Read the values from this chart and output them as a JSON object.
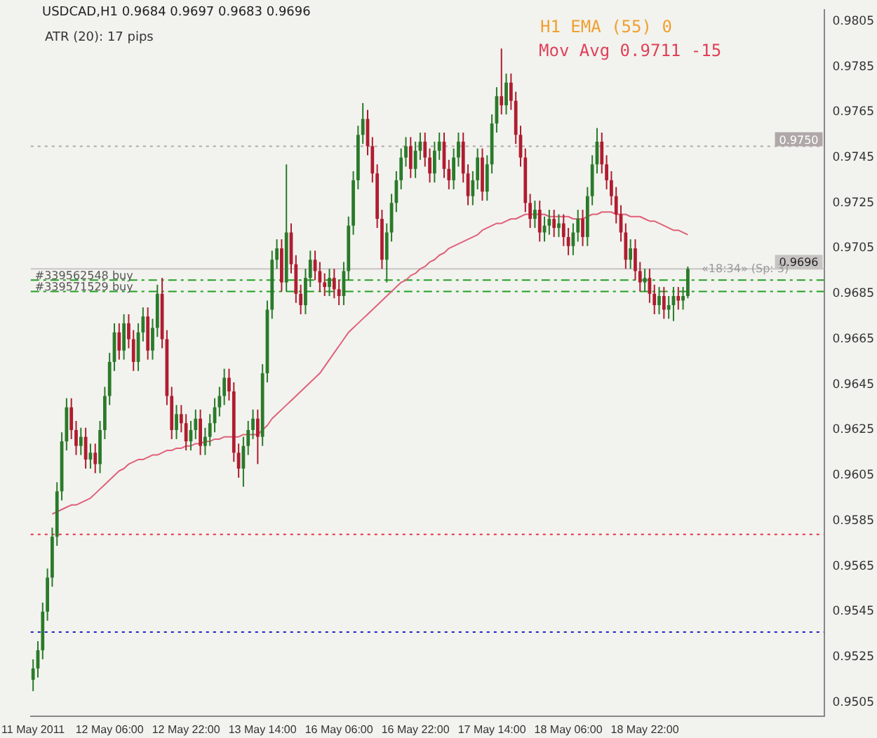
{
  "chart_data": {
    "type": "candlestick",
    "title": "USDCAD,H1  0.9684 0.9697 0.9683 0.9696",
    "annotations": [
      "ATR (20):   17 pips",
      "H1 EMA (55)  0",
      "Mov Avg    0.9711    -15",
      "«18:34» (Sp: 3)"
    ],
    "categories": [
      "11 May 2011",
      null,
      null,
      null,
      null,
      null,
      null,
      null,
      null,
      null,
      null,
      null,
      null,
      null,
      null,
      null,
      "12 May 06:00",
      null,
      null,
      null,
      null,
      null,
      null,
      null,
      null,
      null,
      null,
      null,
      null,
      null,
      null,
      null,
      "12 May 22:00",
      null,
      null,
      null,
      null,
      null,
      null,
      null,
      null,
      null,
      null,
      null,
      null,
      null,
      null,
      null,
      "13 May 14:00",
      null,
      null,
      null,
      null,
      null,
      null,
      null,
      null,
      null,
      null,
      null,
      null,
      null,
      null,
      null,
      "16 May 06:00",
      null,
      null,
      null,
      null,
      null,
      null,
      null,
      null,
      null,
      null,
      null,
      null,
      null,
      null,
      null,
      "16 May 22:00",
      null,
      null,
      null,
      null,
      null,
      null,
      null,
      null,
      null,
      null,
      null,
      null,
      null,
      null,
      null,
      "17 May 14:00",
      null,
      null,
      null,
      null,
      null,
      null,
      null,
      null,
      null,
      null,
      null,
      null,
      null,
      null,
      null,
      "18 May 06:00",
      null,
      null,
      null,
      null,
      null,
      null,
      null,
      null,
      null,
      null,
      null,
      null,
      null,
      null,
      null,
      "18 May 22:00",
      null,
      null,
      null,
      null,
      null,
      null,
      null,
      null,
      null
    ],
    "ohlc": [
      [
        0.9515,
        0.9524,
        0.951,
        0.952
      ],
      [
        0.952,
        0.9532,
        0.9516,
        0.9528
      ],
      [
        0.9528,
        0.9549,
        0.9524,
        0.9545
      ],
      [
        0.9545,
        0.9564,
        0.9541,
        0.956
      ],
      [
        0.956,
        0.9582,
        0.9556,
        0.9578
      ],
      [
        0.9578,
        0.9602,
        0.9574,
        0.9598
      ],
      [
        0.9598,
        0.9624,
        0.9594,
        0.962
      ],
      [
        0.962,
        0.9639,
        0.9616,
        0.9635
      ],
      [
        0.9635,
        0.9639,
        0.9621,
        0.9625
      ],
      [
        0.9625,
        0.9629,
        0.9614,
        0.9618
      ],
      [
        0.9618,
        0.9626,
        0.9614,
        0.9622
      ],
      [
        0.9622,
        0.9626,
        0.9608,
        0.9612
      ],
      [
        0.9612,
        0.9619,
        0.9608,
        0.9615
      ],
      [
        0.9615,
        0.9619,
        0.9606,
        0.961
      ],
      [
        0.961,
        0.9629,
        0.9606,
        0.9625
      ],
      [
        0.9625,
        0.9644,
        0.9621,
        0.964
      ],
      [
        0.964,
        0.9659,
        0.9636,
        0.9655
      ],
      [
        0.9655,
        0.9672,
        0.9651,
        0.9668
      ],
      [
        0.9668,
        0.9672,
        0.9656,
        0.966
      ],
      [
        0.966,
        0.9676,
        0.9656,
        0.9672
      ],
      [
        0.9672,
        0.9676,
        0.9661,
        0.9665
      ],
      [
        0.9665,
        0.9669,
        0.9651,
        0.9655
      ],
      [
        0.9655,
        0.9672,
        0.9651,
        0.9668
      ],
      [
        0.9668,
        0.9679,
        0.9664,
        0.9675
      ],
      [
        0.9675,
        0.9679,
        0.9656,
        0.966
      ],
      [
        0.966,
        0.9674,
        0.9656,
        0.967
      ],
      [
        0.967,
        0.9689,
        0.9666,
        0.9685
      ],
      [
        0.9685,
        0.9692,
        0.9661,
        0.9665
      ],
      [
        0.9665,
        0.9669,
        0.9636,
        0.964
      ],
      [
        0.964,
        0.9644,
        0.9621,
        0.9625
      ],
      [
        0.9625,
        0.9636,
        0.9621,
        0.9632
      ],
      [
        0.9632,
        0.9636,
        0.9624,
        0.9628
      ],
      [
        0.9628,
        0.9632,
        0.9616,
        0.962
      ],
      [
        0.962,
        0.9629,
        0.9616,
        0.9625
      ],
      [
        0.9625,
        0.9634,
        0.9621,
        0.963
      ],
      [
        0.963,
        0.9634,
        0.9614,
        0.9618
      ],
      [
        0.9618,
        0.9626,
        0.9614,
        0.9622
      ],
      [
        0.9622,
        0.9632,
        0.9618,
        0.9628
      ],
      [
        0.9628,
        0.9639,
        0.9624,
        0.9635
      ],
      [
        0.9635,
        0.9644,
        0.9631,
        0.964
      ],
      [
        0.964,
        0.9652,
        0.9636,
        0.9648
      ],
      [
        0.9648,
        0.9652,
        0.9638,
        0.9642
      ],
      [
        0.9642,
        0.9646,
        0.9611,
        0.9615
      ],
      [
        0.9615,
        0.9619,
        0.9604,
        0.9608
      ],
      [
        0.9608,
        0.9622,
        0.96,
        0.9618
      ],
      [
        0.9618,
        0.9629,
        0.9614,
        0.9625
      ],
      [
        0.9625,
        0.9634,
        0.9621,
        0.963
      ],
      [
        0.963,
        0.9634,
        0.961,
        0.9622
      ],
      [
        0.9622,
        0.9654,
        0.9618,
        0.965
      ],
      [
        0.965,
        0.9682,
        0.9646,
        0.9678
      ],
      [
        0.9678,
        0.9704,
        0.9674,
        0.97
      ],
      [
        0.97,
        0.9709,
        0.9696,
        0.9705
      ],
      [
        0.9705,
        0.9709,
        0.9686,
        0.969
      ],
      [
        0.969,
        0.9742,
        0.9686,
        0.9712
      ],
      [
        0.9712,
        0.9716,
        0.9694,
        0.9698
      ],
      [
        0.9698,
        0.9702,
        0.9681,
        0.9685
      ],
      [
        0.9685,
        0.9689,
        0.9676,
        0.968
      ],
      [
        0.968,
        0.9696,
        0.9676,
        0.9692
      ],
      [
        0.9692,
        0.9704,
        0.9688,
        0.97
      ],
      [
        0.97,
        0.9704,
        0.9691,
        0.9695
      ],
      [
        0.9695,
        0.9699,
        0.9686,
        0.969
      ],
      [
        0.969,
        0.9694,
        0.9684,
        0.9688
      ],
      [
        0.9688,
        0.9696,
        0.9684,
        0.9692
      ],
      [
        0.9692,
        0.9696,
        0.9683,
        0.9687
      ],
      [
        0.9687,
        0.9691,
        0.968,
        0.9684
      ],
      [
        0.9684,
        0.9699,
        0.968,
        0.9695
      ],
      [
        0.9695,
        0.9719,
        0.9691,
        0.9715
      ],
      [
        0.9715,
        0.9739,
        0.9711,
        0.9735
      ],
      [
        0.9735,
        0.9759,
        0.9731,
        0.9755
      ],
      [
        0.9755,
        0.9769,
        0.9751,
        0.9762
      ],
      [
        0.9762,
        0.9766,
        0.9746,
        0.975
      ],
      [
        0.975,
        0.9754,
        0.9734,
        0.9738
      ],
      [
        0.9738,
        0.9742,
        0.9714,
        0.9718
      ],
      [
        0.9718,
        0.9722,
        0.9696,
        0.97
      ],
      [
        0.97,
        0.9716,
        0.969,
        0.9712
      ],
      [
        0.9712,
        0.9729,
        0.9708,
        0.9725
      ],
      [
        0.9725,
        0.9739,
        0.9721,
        0.9735
      ],
      [
        0.9735,
        0.9749,
        0.9731,
        0.9745
      ],
      [
        0.9745,
        0.9754,
        0.9741,
        0.975
      ],
      [
        0.975,
        0.9754,
        0.9736,
        0.974
      ],
      [
        0.974,
        0.9752,
        0.9736,
        0.9748
      ],
      [
        0.9748,
        0.9756,
        0.9744,
        0.9752
      ],
      [
        0.9752,
        0.9756,
        0.9741,
        0.9745
      ],
      [
        0.9745,
        0.9749,
        0.9734,
        0.9738
      ],
      [
        0.9738,
        0.9752,
        0.9734,
        0.9748
      ],
      [
        0.9748,
        0.9756,
        0.9744,
        0.9752
      ],
      [
        0.9752,
        0.9756,
        0.9736,
        0.974
      ],
      [
        0.974,
        0.9744,
        0.9731,
        0.9735
      ],
      [
        0.9735,
        0.9749,
        0.9731,
        0.9745
      ],
      [
        0.9745,
        0.9756,
        0.9741,
        0.9752
      ],
      [
        0.9752,
        0.9756,
        0.9734,
        0.9738
      ],
      [
        0.9738,
        0.9742,
        0.9724,
        0.9728
      ],
      [
        0.9728,
        0.9739,
        0.9724,
        0.9735
      ],
      [
        0.9735,
        0.9749,
        0.9731,
        0.9745
      ],
      [
        0.9745,
        0.9749,
        0.9726,
        0.973
      ],
      [
        0.973,
        0.9746,
        0.9726,
        0.9742
      ],
      [
        0.9742,
        0.9764,
        0.9738,
        0.976
      ],
      [
        0.976,
        0.9776,
        0.9756,
        0.9772
      ],
      [
        0.9772,
        0.9793,
        0.9764,
        0.9768
      ],
      [
        0.9768,
        0.9782,
        0.9764,
        0.9778
      ],
      [
        0.9778,
        0.9782,
        0.9766,
        0.977
      ],
      [
        0.977,
        0.9774,
        0.9751,
        0.9755
      ],
      [
        0.9755,
        0.9759,
        0.9741,
        0.9745
      ],
      [
        0.9745,
        0.9749,
        0.9721,
        0.9725
      ],
      [
        0.9725,
        0.9729,
        0.9714,
        0.9718
      ],
      [
        0.9718,
        0.9726,
        0.9714,
        0.9722
      ],
      [
        0.9722,
        0.9726,
        0.9708,
        0.9712
      ],
      [
        0.9712,
        0.9719,
        0.9708,
        0.9715
      ],
      [
        0.9715,
        0.9722,
        0.9711,
        0.9718
      ],
      [
        0.9718,
        0.9722,
        0.971,
        0.9714
      ],
      [
        0.9714,
        0.972,
        0.971,
        0.9716
      ],
      [
        0.9716,
        0.972,
        0.9706,
        0.971
      ],
      [
        0.971,
        0.9714,
        0.9702,
        0.9706
      ],
      [
        0.9706,
        0.9716,
        0.9702,
        0.9712
      ],
      [
        0.9712,
        0.9722,
        0.9708,
        0.9718
      ],
      [
        0.9718,
        0.9722,
        0.9706,
        0.971
      ],
      [
        0.971,
        0.9732,
        0.9706,
        0.9728
      ],
      [
        0.9728,
        0.9746,
        0.9724,
        0.9742
      ],
      [
        0.9742,
        0.9758,
        0.9738,
        0.9752
      ],
      [
        0.9752,
        0.9756,
        0.9738,
        0.9742
      ],
      [
        0.9742,
        0.9746,
        0.9731,
        0.9735
      ],
      [
        0.9735,
        0.9739,
        0.9724,
        0.9728
      ],
      [
        0.9728,
        0.9732,
        0.9716,
        0.972
      ],
      [
        0.972,
        0.9724,
        0.9708,
        0.9712
      ],
      [
        0.9712,
        0.9716,
        0.9696,
        0.97
      ],
      [
        0.97,
        0.9709,
        0.9696,
        0.9705
      ],
      [
        0.9705,
        0.9709,
        0.9691,
        0.9695
      ],
      [
        0.9695,
        0.9699,
        0.9686,
        0.969
      ],
      [
        0.969,
        0.9696,
        0.9686,
        0.9692
      ],
      [
        0.9692,
        0.9696,
        0.9681,
        0.9685
      ],
      [
        0.9685,
        0.9689,
        0.9676,
        0.968
      ],
      [
        0.968,
        0.9688,
        0.9676,
        0.9684
      ],
      [
        0.9684,
        0.9688,
        0.9674,
        0.9678
      ],
      [
        0.9678,
        0.9684,
        0.9674,
        0.968
      ],
      [
        0.968,
        0.9688,
        0.9673,
        0.9684
      ],
      [
        0.9684,
        0.9688,
        0.9678,
        0.9682
      ],
      [
        0.9682,
        0.9688,
        0.9678,
        0.9684
      ],
      [
        0.9684,
        0.9697,
        0.9683,
        0.9696
      ]
    ],
    "series": [
      {
        "type": "line",
        "color": "#e0607a",
        "values": [
          null,
          null,
          null,
          null,
          0.9588,
          0.9589,
          0.959,
          0.9591,
          0.9592,
          0.9592,
          0.9593,
          0.9594,
          0.9595,
          0.9597,
          0.9599,
          0.9601,
          0.9603,
          0.9605,
          0.9607,
          0.9608,
          0.961,
          0.9611,
          0.9612,
          0.9612,
          0.9613,
          0.9614,
          0.9614,
          0.9615,
          0.9616,
          0.9616,
          0.9617,
          0.9617,
          0.9618,
          0.9618,
          0.9619,
          0.9619,
          0.962,
          0.962,
          0.9621,
          0.9621,
          0.9622,
          0.9622,
          0.9622,
          0.9622,
          0.9623,
          0.9623,
          0.9623,
          0.9623,
          0.9625,
          0.9627,
          0.963,
          0.9632,
          0.9634,
          0.9636,
          0.9638,
          0.964,
          0.9642,
          0.9644,
          0.9646,
          0.9648,
          0.965,
          0.9653,
          0.9656,
          0.9659,
          0.9662,
          0.9665,
          0.9668,
          0.967,
          0.9672,
          0.9674,
          0.9676,
          0.9678,
          0.968,
          0.9682,
          0.9684,
          0.9686,
          0.9688,
          0.969,
          0.9691,
          0.9693,
          0.9694,
          0.9696,
          0.9697,
          0.9699,
          0.97,
          0.9702,
          0.9703,
          0.9705,
          0.9706,
          0.9707,
          0.9708,
          0.9709,
          0.971,
          0.9711,
          0.9713,
          0.9714,
          0.9715,
          0.9716,
          0.9716,
          0.9717,
          0.9718,
          0.9718,
          0.9719,
          0.972,
          0.972,
          0.972,
          0.972,
          0.972,
          0.9719,
          0.9719,
          0.9719,
          0.9719,
          0.9719,
          0.9718,
          0.9718,
          0.9718,
          0.9719,
          0.972,
          0.972,
          0.9721,
          0.9721,
          0.9721,
          0.972,
          0.972,
          0.972,
          0.9719,
          0.9719,
          0.9719,
          0.9718,
          0.9717,
          0.9717,
          0.9716,
          0.9715,
          0.9714,
          0.9713,
          0.9713,
          0.9712,
          0.9711
        ]
      }
    ],
    "ref_lines": [
      {
        "axis": "y",
        "value": 0.9691,
        "label": "#339562548 buy",
        "color": "#22a022",
        "line_style": "dashed"
      },
      {
        "axis": "y",
        "value": 0.9686,
        "label": "#339571529 buy",
        "color": "#22a022",
        "line_style": "dashed"
      },
      {
        "axis": "y",
        "value": 0.975,
        "label": "0.9750",
        "color": "#b0a8a8",
        "line_style": "dotted"
      },
      {
        "axis": "y",
        "value": 0.9696,
        "label": "0.9696",
        "color": "#c8c4c4",
        "line_style": "solid"
      },
      {
        "axis": "y",
        "value": 0.9579,
        "color": "#e8304a",
        "line_style": "dotted"
      },
      {
        "axis": "y",
        "value": 0.9536,
        "color": "#2020c0",
        "line_style": "dotted"
      }
    ],
    "ylim": [
      0.9499,
      0.981
    ],
    "yticks": [
      0.9505,
      0.9525,
      0.9545,
      0.9565,
      0.9585,
      0.9605,
      0.9625,
      0.9645,
      0.9665,
      0.9685,
      0.9705,
      0.9725,
      0.9745,
      0.9765,
      0.9785,
      0.9805
    ],
    "grid": false,
    "legend": false
  }
}
